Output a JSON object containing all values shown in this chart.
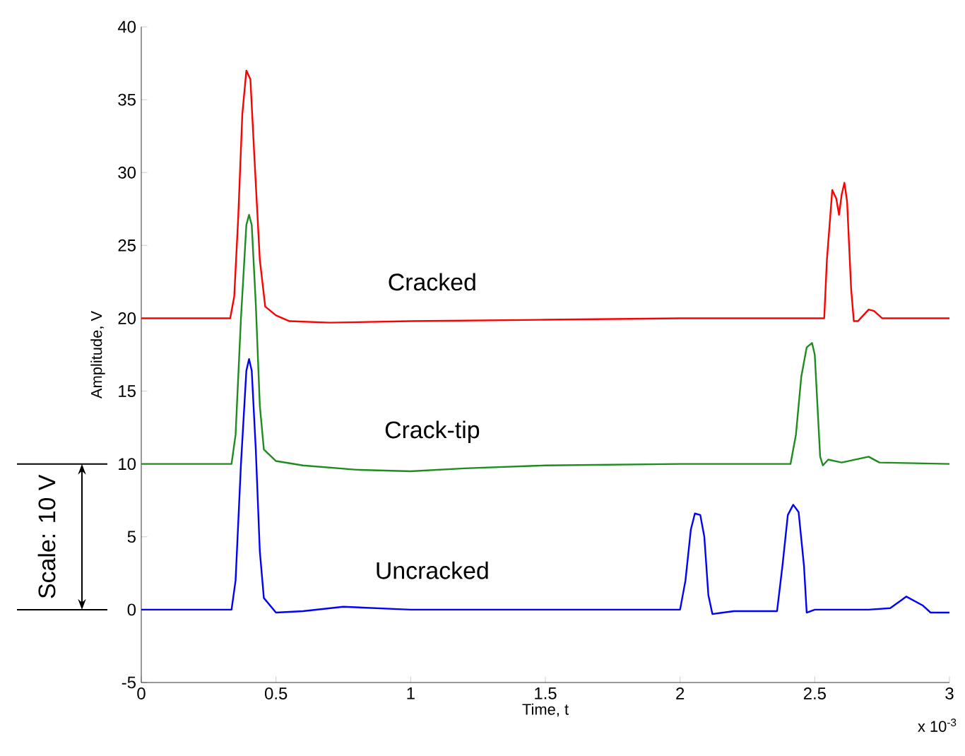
{
  "chart_data": {
    "type": "line",
    "xlabel": "Time, t",
    "ylabel": "Amplitude, V",
    "annotations": [
      "x 10$^{-3}$",
      "Scale:  10 V"
    ],
    "xlim": [
      0,
      3
    ],
    "ylim": [
      -5,
      40
    ],
    "xticks": [
      0,
      0.5,
      1,
      1.5,
      2,
      2.5,
      3
    ],
    "yticks": [
      -5,
      0,
      5,
      10,
      15,
      20,
      25,
      30,
      35,
      40
    ],
    "series": [
      {
        "name": "Cracked",
        "color": "#ff0000",
        "x": [
          0,
          0.33,
          0.345,
          0.36,
          0.375,
          0.39,
          0.405,
          0.42,
          0.44,
          0.46,
          0.5,
          0.55,
          0.7,
          1.0,
          1.5,
          2.0,
          2.535,
          2.545,
          2.565,
          2.58,
          2.59,
          2.6,
          2.61,
          2.62,
          2.635,
          2.645,
          2.66,
          2.7,
          2.72,
          2.75,
          3.0
        ],
        "values": [
          20,
          20,
          21.5,
          27,
          34,
          37,
          36.4,
          31,
          24,
          20.8,
          20.2,
          19.8,
          19.7,
          19.8,
          19.9,
          20,
          20,
          24,
          28.8,
          28.2,
          27.1,
          28.5,
          29.3,
          28,
          22,
          19.8,
          19.8,
          20.6,
          20.5,
          20,
          20
        ]
      },
      {
        "name": "Crack-tip",
        "color": "#1e8c1e",
        "x": [
          0,
          0.335,
          0.35,
          0.37,
          0.39,
          0.4,
          0.41,
          0.425,
          0.44,
          0.455,
          0.5,
          0.6,
          0.8,
          1.0,
          1.2,
          1.5,
          2.0,
          2.41,
          2.43,
          2.45,
          2.47,
          2.49,
          2.5,
          2.51,
          2.52,
          2.53,
          2.55,
          2.6,
          2.7,
          2.74,
          3.0
        ],
        "values": [
          10,
          10,
          12,
          20,
          26.4,
          27.1,
          26.4,
          21,
          14,
          11,
          10.2,
          9.9,
          9.6,
          9.5,
          9.7,
          9.9,
          10,
          10,
          12,
          16,
          18,
          18.3,
          17.5,
          14,
          10.5,
          9.9,
          10.3,
          10.1,
          10.5,
          10.1,
          10
        ]
      },
      {
        "name": "Uncracked",
        "color": "#0000ff",
        "x": [
          0,
          0.335,
          0.35,
          0.37,
          0.39,
          0.4,
          0.41,
          0.425,
          0.44,
          0.455,
          0.5,
          0.6,
          0.75,
          1.0,
          1.5,
          2.0,
          2.02,
          2.04,
          2.055,
          2.075,
          2.09,
          2.105,
          2.12,
          2.2,
          2.36,
          2.38,
          2.4,
          2.42,
          2.44,
          2.46,
          2.47,
          2.5,
          2.7,
          2.78,
          2.84,
          2.9,
          2.93,
          3.0
        ],
        "values": [
          0,
          0,
          2,
          10,
          16.4,
          17.2,
          16.4,
          11,
          4,
          0.8,
          -0.2,
          -0.1,
          0.2,
          0,
          0,
          0,
          2,
          5.5,
          6.6,
          6.5,
          5,
          1,
          -0.3,
          -0.1,
          -0.1,
          3,
          6.5,
          7.2,
          6.7,
          3,
          -0.2,
          0,
          0,
          0.1,
          0.9,
          0.3,
          -0.2,
          -0.2
        ]
      }
    ]
  }
}
